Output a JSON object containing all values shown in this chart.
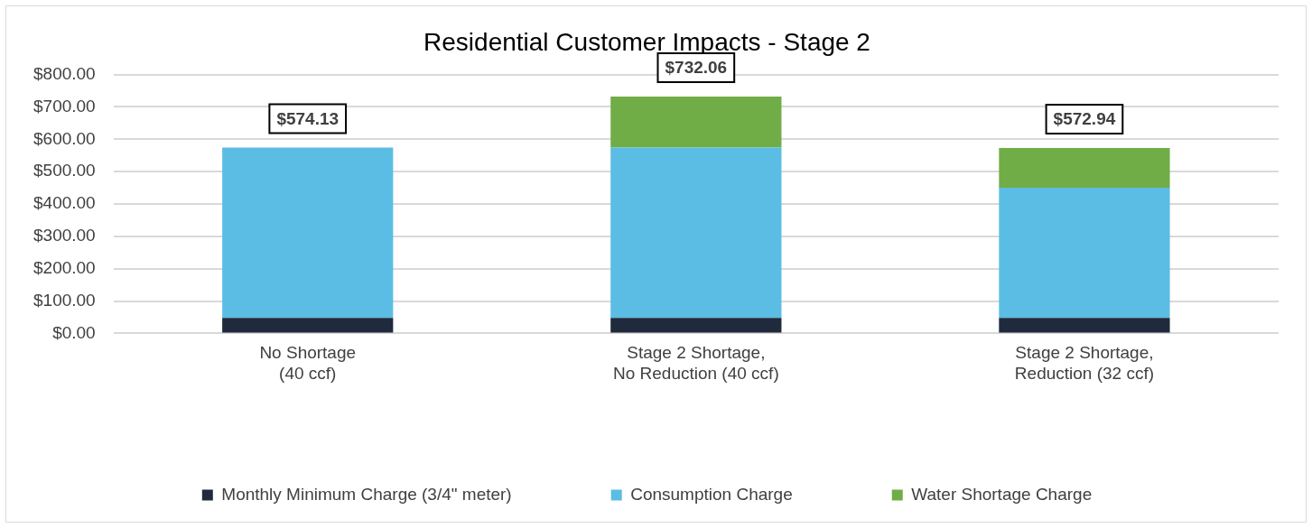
{
  "chart_data": {
    "type": "bar",
    "title": "Residential Customer Impacts - Stage 2",
    "stacked": true,
    "categories": [
      "No Shortage\n(40 ccf)",
      "Stage 2 Shortage,\nNo Reduction (40 ccf)",
      "Stage 2 Shortage,\nReduction (32 ccf)"
    ],
    "series": [
      {
        "name": "Monthly Minimum Charge (3/4\" meter)",
        "color": "#1f2a3d",
        "values": [
          48,
          48,
          48
        ]
      },
      {
        "name": "Consumption Charge",
        "color": "#5bbde4",
        "values": [
          526.13,
          526.13,
          402
        ]
      },
      {
        "name": "Water Shortage Charge",
        "color": "#70ad47",
        "values": [
          0,
          157.93,
          122.94
        ]
      }
    ],
    "totals": [
      "$574.13",
      "$732.06",
      "$572.94"
    ],
    "ylim": [
      0,
      800
    ],
    "yticks": [
      {
        "value": 0,
        "label": "$0.00"
      },
      {
        "value": 100,
        "label": "$100.00"
      },
      {
        "value": 200,
        "label": "$200.00"
      },
      {
        "value": 300,
        "label": "$300.00"
      },
      {
        "value": 400,
        "label": "$400.00"
      },
      {
        "value": 500,
        "label": "$500.00"
      },
      {
        "value": 600,
        "label": "$600.00"
      },
      {
        "value": 700,
        "label": "$700.00"
      },
      {
        "value": 800,
        "label": "$800.00"
      }
    ],
    "grid": "y",
    "legend": "bottom"
  }
}
